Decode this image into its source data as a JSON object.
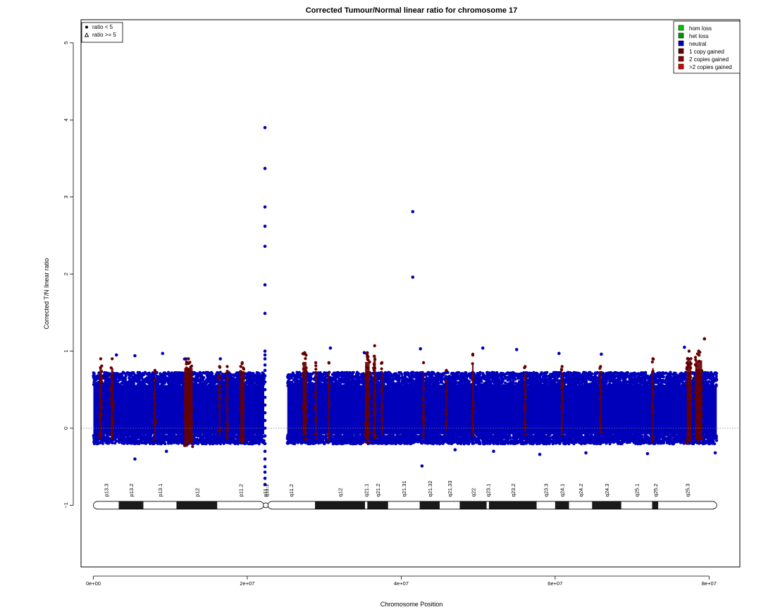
{
  "chart_data": {
    "type": "scatter",
    "title": "Corrected Tumour/Normal linear ratio for chromosome  17",
    "xlabel": "Chromosome Position",
    "ylabel": "Corrected T/N linear ratio",
    "xlim": [
      -1600000,
      84000000
    ],
    "ylim": [
      -1.8,
      5.3
    ],
    "x_ticks": [
      {
        "value": 0,
        "label": "0e+00"
      },
      {
        "value": 20000000,
        "label": "2e+07"
      },
      {
        "value": 40000000,
        "label": "4e+07"
      },
      {
        "value": 60000000,
        "label": "6e+07"
      },
      {
        "value": 80000000,
        "label": "8e+07"
      }
    ],
    "y_ticks": [
      {
        "value": -1,
        "label": "−1"
      },
      {
        "value": 0,
        "label": "0"
      },
      {
        "value": 1,
        "label": "1"
      },
      {
        "value": 2,
        "label": "2"
      },
      {
        "value": 3,
        "label": "3"
      },
      {
        "value": 4,
        "label": "4"
      },
      {
        "value": 5,
        "label": "5"
      }
    ],
    "reference_line_y": 0,
    "shape_legend": {
      "position": "top-left",
      "entries": [
        {
          "label": "ratio < 5",
          "shape": "filled-circle"
        },
        {
          "label": "ratio >= 5",
          "shape": "open-triangle"
        }
      ]
    },
    "color_legend": {
      "position": "top-right",
      "entries": [
        {
          "label": "hom loss",
          "color": "#00cc00"
        },
        {
          "label": "het loss",
          "color": "#009900"
        },
        {
          "label": "neutral",
          "color": "#0000bb"
        },
        {
          "label": "1 copy gained",
          "color": "#660000"
        },
        {
          "label": "2 copies gained",
          "color": "#990000"
        },
        {
          "label": ">2 copies gained",
          "color": "#dd0000"
        }
      ]
    },
    "series": [
      {
        "name": "neutral",
        "color": "#0000bb",
        "density_bands": [
          {
            "x_start": 0,
            "x_end": 22200000,
            "y_center": 0.25,
            "y_low": -0.12,
            "y_high": 0.6
          },
          {
            "x_start": 25200000,
            "x_end": 81000000,
            "y_center": 0.25,
            "y_low": -0.12,
            "y_high": 0.6
          }
        ],
        "points": [
          {
            "x": 22300000,
            "y": 3.9
          },
          {
            "x": 22300000,
            "y": 3.37
          },
          {
            "x": 22300000,
            "y": 2.87
          },
          {
            "x": 22300000,
            "y": 2.62
          },
          {
            "x": 22300000,
            "y": 2.36
          },
          {
            "x": 22300000,
            "y": 1.86
          },
          {
            "x": 22300000,
            "y": 1.49
          },
          {
            "x": 22300000,
            "y": 1.0
          },
          {
            "x": 22300000,
            "y": 0.95
          },
          {
            "x": 22300000,
            "y": 0.9
          },
          {
            "x": 22300000,
            "y": 0.82
          },
          {
            "x": 22300000,
            "y": 0.75
          },
          {
            "x": 22300000,
            "y": 0.68
          },
          {
            "x": 22300000,
            "y": 0.6
          },
          {
            "x": 22300000,
            "y": 0.5
          },
          {
            "x": 22300000,
            "y": 0.4
          },
          {
            "x": 22300000,
            "y": 0.3
          },
          {
            "x": 22300000,
            "y": 0.2
          },
          {
            "x": 22300000,
            "y": 0.1
          },
          {
            "x": 22300000,
            "y": 0.0
          },
          {
            "x": 22300000,
            "y": -0.1
          },
          {
            "x": 22300000,
            "y": -0.2
          },
          {
            "x": 22300000,
            "y": -0.3
          },
          {
            "x": 22300000,
            "y": -0.4
          },
          {
            "x": 22300000,
            "y": -0.5
          },
          {
            "x": 22300000,
            "y": -0.57
          },
          {
            "x": 22300000,
            "y": -0.65
          },
          {
            "x": 22300000,
            "y": -0.73
          },
          {
            "x": 41500000,
            "y": 2.81
          },
          {
            "x": 41500000,
            "y": 1.96
          },
          {
            "x": 42700000,
            "y": -0.49
          },
          {
            "x": 5400000,
            "y": -0.4
          },
          {
            "x": 3000000,
            "y": 0.95
          },
          {
            "x": 5400000,
            "y": 0.94
          },
          {
            "x": 9000000,
            "y": 0.97
          },
          {
            "x": 12000000,
            "y": 0.9
          },
          {
            "x": 16500000,
            "y": 0.9
          },
          {
            "x": 30800000,
            "y": 1.04
          },
          {
            "x": 35200000,
            "y": 0.98
          },
          {
            "x": 42500000,
            "y": 1.03
          },
          {
            "x": 50600000,
            "y": 1.04
          },
          {
            "x": 55000000,
            "y": 1.02
          },
          {
            "x": 60500000,
            "y": 0.97
          },
          {
            "x": 66000000,
            "y": 0.96
          },
          {
            "x": 76800000,
            "y": 1.05
          },
          {
            "x": 58000000,
            "y": -0.34
          },
          {
            "x": 64000000,
            "y": -0.32
          },
          {
            "x": 72000000,
            "y": -0.33
          },
          {
            "x": 80800000,
            "y": -0.32
          },
          {
            "x": 9500000,
            "y": -0.3
          },
          {
            "x": 47000000,
            "y": -0.28
          },
          {
            "x": 52000000,
            "y": -0.3
          }
        ]
      },
      {
        "name": "1 copy gained",
        "color": "#660000",
        "segments": [
          {
            "x_start": 800000,
            "x_end": 1100000,
            "y_low": -0.2,
            "y_high": 0.9
          },
          {
            "x_start": 2300000,
            "x_end": 2600000,
            "y_low": -0.2,
            "y_high": 0.9
          },
          {
            "x_start": 7900000,
            "x_end": 8100000,
            "y_low": -0.15,
            "y_high": 0.75
          },
          {
            "x_start": 11800000,
            "x_end": 12900000,
            "y_low": -0.25,
            "y_high": 0.9
          },
          {
            "x_start": 16300000,
            "x_end": 16500000,
            "y_low": -0.15,
            "y_high": 0.8
          },
          {
            "x_start": 17300000,
            "x_end": 17500000,
            "y_low": -0.15,
            "y_high": 0.8
          },
          {
            "x_start": 19100000,
            "x_end": 19600000,
            "y_low": -0.2,
            "y_high": 0.85
          },
          {
            "x_start": 27200000,
            "x_end": 27700000,
            "y_low": -0.15,
            "y_high": 0.98
          },
          {
            "x_start": 28800000,
            "x_end": 29000000,
            "y_low": -0.15,
            "y_high": 0.85
          },
          {
            "x_start": 30500000,
            "x_end": 30700000,
            "y_low": -0.15,
            "y_high": 0.85
          },
          {
            "x_start": 35300000,
            "x_end": 35900000,
            "y_low": -0.2,
            "y_high": 0.98
          },
          {
            "x_start": 36400000,
            "x_end": 36700000,
            "y_low": -0.2,
            "y_high": 1.07
          },
          {
            "x_start": 37400000,
            "x_end": 37600000,
            "y_low": -0.15,
            "y_high": 0.85
          },
          {
            "x_start": 42800000,
            "x_end": 43000000,
            "y_low": -0.2,
            "y_high": 0.85
          },
          {
            "x_start": 45800000,
            "x_end": 45900000,
            "y_low": -0.1,
            "y_high": 0.75
          },
          {
            "x_start": 49200000,
            "x_end": 49400000,
            "y_low": -0.15,
            "y_high": 0.96
          },
          {
            "x_start": 56000000,
            "x_end": 56200000,
            "y_low": -0.1,
            "y_high": 0.8
          },
          {
            "x_start": 60800000,
            "x_end": 61000000,
            "y_low": -0.1,
            "y_high": 0.8
          },
          {
            "x_start": 65800000,
            "x_end": 66000000,
            "y_low": -0.1,
            "y_high": 0.8
          },
          {
            "x_start": 72600000,
            "x_end": 72800000,
            "y_low": -0.2,
            "y_high": 0.9
          },
          {
            "x_start": 77100000,
            "x_end": 77700000,
            "y_low": -0.2,
            "y_high": 1.0
          },
          {
            "x_start": 78200000,
            "x_end": 79100000,
            "y_low": -0.2,
            "y_high": 1.0
          }
        ],
        "points": [
          {
            "x": 79400000,
            "y": 1.16
          }
        ]
      }
    ],
    "ideogram": {
      "y": -1,
      "start": 0,
      "end": 81000000,
      "centromere": 22400000,
      "bands": [
        {
          "name": "p13.3",
          "start": 0,
          "end": 3300000,
          "stain": "white"
        },
        {
          "name": "p13.2",
          "start": 3300000,
          "end": 6500000,
          "stain": "black"
        },
        {
          "name": "p13.1",
          "start": 6500000,
          "end": 10800000,
          "stain": "white"
        },
        {
          "name": "p12",
          "start": 10800000,
          "end": 16100000,
          "stain": "black"
        },
        {
          "name": "p11.2",
          "start": 16100000,
          "end": 22200000,
          "stain": "white"
        },
        {
          "name": "p11.1",
          "start": 22200000,
          "end": 22400000,
          "stain": "white"
        },
        {
          "name": "q11.1",
          "start": 22400000,
          "end": 22600000,
          "stain": "white"
        },
        {
          "name": "q11.2",
          "start": 22600000,
          "end": 28800000,
          "stain": "white"
        },
        {
          "name": "q12",
          "start": 28800000,
          "end": 35300000,
          "stain": "black"
        },
        {
          "name": "q21.1",
          "start": 35300000,
          "end": 35600000,
          "stain": "white"
        },
        {
          "name": "q21.2",
          "start": 35600000,
          "end": 38300000,
          "stain": "black"
        },
        {
          "name": "q21.31",
          "start": 38300000,
          "end": 42400000,
          "stain": "white"
        },
        {
          "name": "q21.32",
          "start": 42400000,
          "end": 45000000,
          "stain": "black"
        },
        {
          "name": "q21.33",
          "start": 45000000,
          "end": 47600000,
          "stain": "white"
        },
        {
          "name": "q22",
          "start": 47600000,
          "end": 51100000,
          "stain": "black"
        },
        {
          "name": "q23.1",
          "start": 51100000,
          "end": 51400000,
          "stain": "white"
        },
        {
          "name": "q23.2",
          "start": 51400000,
          "end": 57600000,
          "stain": "black"
        },
        {
          "name": "q23.3",
          "start": 57600000,
          "end": 60000000,
          "stain": "white"
        },
        {
          "name": "q24.1",
          "start": 60000000,
          "end": 61800000,
          "stain": "black"
        },
        {
          "name": "q24.2",
          "start": 61800000,
          "end": 64800000,
          "stain": "white"
        },
        {
          "name": "q24.3",
          "start": 64800000,
          "end": 68600000,
          "stain": "black"
        },
        {
          "name": "q25.1",
          "start": 68600000,
          "end": 72600000,
          "stain": "white"
        },
        {
          "name": "q25.2",
          "start": 72600000,
          "end": 73400000,
          "stain": "black"
        },
        {
          "name": "q25.3",
          "start": 73400000,
          "end": 81000000,
          "stain": "white"
        }
      ]
    },
    "grid": false
  }
}
